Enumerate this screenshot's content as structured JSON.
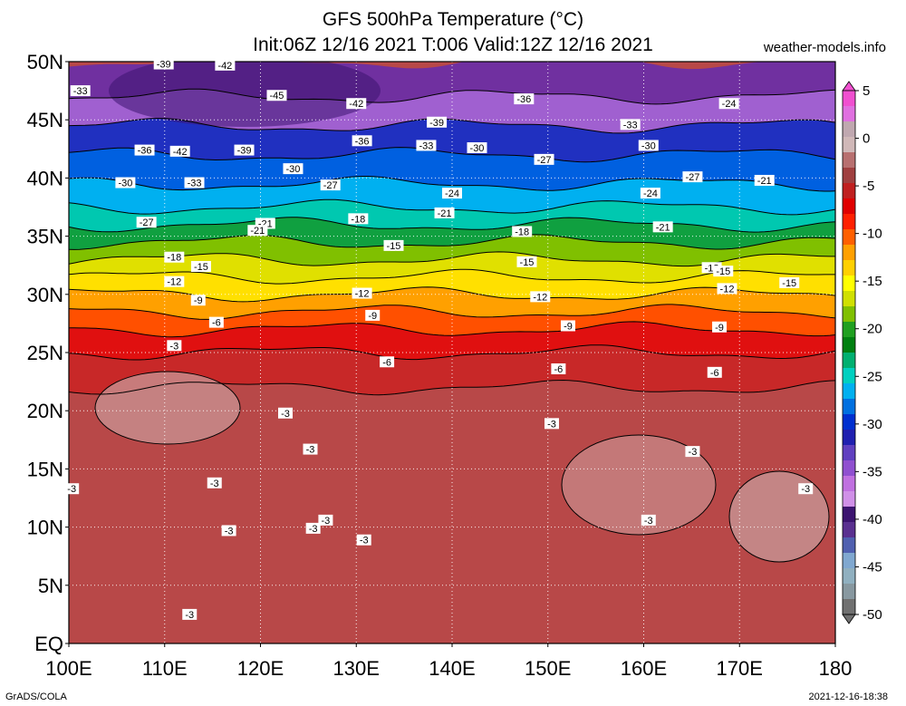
{
  "title_line1": "GFS 500hPa Temperature (°C)",
  "title_line2": "Init:06Z 12/16 2021 T:006 Valid:12Z 12/16 2021",
  "source": "weather-models.info",
  "footer_left": "GrADS/COLA",
  "footer_right": "2021-12-16-18:38",
  "lat_labels": [
    "50N",
    "45N",
    "40N",
    "35N",
    "30N",
    "25N",
    "20N",
    "15N",
    "10N",
    "5N",
    "EQ"
  ],
  "lon_labels": [
    "100E",
    "110E",
    "120E",
    "130E",
    "140E",
    "150E",
    "160E",
    "170E",
    "180"
  ],
  "colorbar": {
    "labels": [
      "5",
      "0",
      "-5",
      "-10",
      "-15",
      "-20",
      "-25",
      "-30",
      "-35",
      "-40",
      "-45",
      "-50"
    ],
    "colors": [
      "#f050d0",
      "#e070e0",
      "#c0a8b0",
      "#d0b8b8",
      "#b87070",
      "#a04040",
      "#c02020",
      "#e00000",
      "#ff2000",
      "#ff6000",
      "#ffa000",
      "#ffd000",
      "#ffff00",
      "#d0e000",
      "#80c000",
      "#20a020",
      "#008010",
      "#00b070",
      "#00d0c0",
      "#00b0f0",
      "#0070e0",
      "#0030d0",
      "#2020b0",
      "#6040c0",
      "#9050d0",
      "#c070e0",
      "#d090e8",
      "#3c1470",
      "#5a3090",
      "#5060b0",
      "#80a8d0",
      "#90b0c0",
      "#8898a0",
      "#707070"
    ]
  },
  "bands": [
    {
      "lat": 50,
      "color": "#7030a0"
    },
    {
      "lat": 47,
      "color": "#a060d0"
    },
    {
      "lat": 44.5,
      "color": "#2030c0"
    },
    {
      "lat": 42,
      "color": "#0060e0"
    },
    {
      "lat": 39.5,
      "color": "#00b0f0"
    },
    {
      "lat": 37.5,
      "color": "#00c8b0"
    },
    {
      "lat": 36,
      "color": "#10a040"
    },
    {
      "lat": 34.5,
      "color": "#80c000"
    },
    {
      "lat": 33,
      "color": "#e0e000"
    },
    {
      "lat": 31.5,
      "color": "#ffe000"
    },
    {
      "lat": 30,
      "color": "#ffa000"
    },
    {
      "lat": 28.5,
      "color": "#ff5000"
    },
    {
      "lat": 27,
      "color": "#e01010"
    },
    {
      "lat": 25,
      "color": "#c82828"
    },
    {
      "lat": 22,
      "color": "#b84848"
    },
    {
      "lat": 0,
      "color": "#b84848"
    }
  ],
  "contour_labels": [
    {
      "lon": 109.9,
      "lat": 49.8,
      "text": "-39"
    },
    {
      "lon": 116.3,
      "lat": 49.7,
      "text": "-42"
    },
    {
      "lon": 101.2,
      "lat": 47.5,
      "text": "-33"
    },
    {
      "lon": 121.7,
      "lat": 47.1,
      "text": "-45"
    },
    {
      "lon": 130.0,
      "lat": 46.4,
      "text": "-42"
    },
    {
      "lon": 147.5,
      "lat": 46.8,
      "text": "-36"
    },
    {
      "lon": 168.9,
      "lat": 46.4,
      "text": "-24"
    },
    {
      "lon": 138.4,
      "lat": 44.8,
      "text": "-39"
    },
    {
      "lon": 158.6,
      "lat": 44.6,
      "text": "-33"
    },
    {
      "lon": 130.6,
      "lat": 43.2,
      "text": "-36"
    },
    {
      "lon": 137.3,
      "lat": 42.8,
      "text": "-33"
    },
    {
      "lon": 142.6,
      "lat": 42.6,
      "text": "-30"
    },
    {
      "lon": 160.5,
      "lat": 42.8,
      "text": "-30"
    },
    {
      "lon": 107.9,
      "lat": 42.4,
      "text": "-36"
    },
    {
      "lon": 111.6,
      "lat": 42.3,
      "text": "-42"
    },
    {
      "lon": 118.3,
      "lat": 42.4,
      "text": "-39"
    },
    {
      "lon": 149.6,
      "lat": 41.6,
      "text": "-27"
    },
    {
      "lon": 123.4,
      "lat": 40.8,
      "text": "-30"
    },
    {
      "lon": 165.1,
      "lat": 40.1,
      "text": "-27"
    },
    {
      "lon": 172.6,
      "lat": 39.8,
      "text": "-21"
    },
    {
      "lon": 105.9,
      "lat": 39.6,
      "text": "-30"
    },
    {
      "lon": 113.1,
      "lat": 39.6,
      "text": "-33"
    },
    {
      "lon": 127.3,
      "lat": 39.4,
      "text": "-27"
    },
    {
      "lon": 140.0,
      "lat": 38.7,
      "text": "-24"
    },
    {
      "lon": 160.7,
      "lat": 38.7,
      "text": "-24"
    },
    {
      "lon": 139.2,
      "lat": 37.0,
      "text": "-21"
    },
    {
      "lon": 130.2,
      "lat": 36.5,
      "text": "-18"
    },
    {
      "lon": 120.5,
      "lat": 36.1,
      "text": "-21"
    },
    {
      "lon": 108.1,
      "lat": 36.2,
      "text": "-27"
    },
    {
      "lon": 119.7,
      "lat": 35.5,
      "text": "-21"
    },
    {
      "lon": 162.0,
      "lat": 35.8,
      "text": "-21"
    },
    {
      "lon": 147.3,
      "lat": 35.4,
      "text": "-18"
    },
    {
      "lon": 133.9,
      "lat": 34.2,
      "text": "-15"
    },
    {
      "lon": 111.0,
      "lat": 33.2,
      "text": "-18"
    },
    {
      "lon": 147.8,
      "lat": 32.8,
      "text": "-15"
    },
    {
      "lon": 113.8,
      "lat": 32.4,
      "text": "-15"
    },
    {
      "lon": 167.1,
      "lat": 32.3,
      "text": "-18"
    },
    {
      "lon": 168.3,
      "lat": 32.0,
      "text": "-15"
    },
    {
      "lon": 111.0,
      "lat": 31.1,
      "text": "-12"
    },
    {
      "lon": 175.2,
      "lat": 31.0,
      "text": "-15"
    },
    {
      "lon": 168.7,
      "lat": 30.5,
      "text": "-12"
    },
    {
      "lon": 130.6,
      "lat": 30.1,
      "text": "-12"
    },
    {
      "lon": 149.2,
      "lat": 29.8,
      "text": "-12"
    },
    {
      "lon": 113.5,
      "lat": 29.5,
      "text": "-9"
    },
    {
      "lon": 131.7,
      "lat": 28.2,
      "text": "-9"
    },
    {
      "lon": 115.4,
      "lat": 27.6,
      "text": "-6"
    },
    {
      "lon": 152.1,
      "lat": 27.3,
      "text": "-9"
    },
    {
      "lon": 167.9,
      "lat": 27.2,
      "text": "-9"
    },
    {
      "lon": 111.0,
      "lat": 25.6,
      "text": "-3"
    },
    {
      "lon": 133.2,
      "lat": 24.2,
      "text": "-6"
    },
    {
      "lon": 151.1,
      "lat": 23.6,
      "text": "-6"
    },
    {
      "lon": 167.4,
      "lat": 23.3,
      "text": "-6"
    },
    {
      "lon": 122.6,
      "lat": 19.8,
      "text": "-3"
    },
    {
      "lon": 150.4,
      "lat": 18.9,
      "text": "-3"
    },
    {
      "lon": 125.2,
      "lat": 16.7,
      "text": "-3"
    },
    {
      "lon": 165.1,
      "lat": 16.5,
      "text": "-3"
    },
    {
      "lon": 115.2,
      "lat": 13.8,
      "text": "-3"
    },
    {
      "lon": 100.3,
      "lat": 13.3,
      "text": "-3"
    },
    {
      "lon": 176.9,
      "lat": 13.3,
      "text": "-3"
    },
    {
      "lon": 126.8,
      "lat": 10.6,
      "text": "-3"
    },
    {
      "lon": 125.5,
      "lat": 9.9,
      "text": "-3"
    },
    {
      "lon": 116.7,
      "lat": 9.7,
      "text": "-3"
    },
    {
      "lon": 130.8,
      "lat": 8.9,
      "text": "-3"
    },
    {
      "lon": 160.5,
      "lat": 10.6,
      "text": "-3"
    },
    {
      "lon": 112.6,
      "lat": 2.5,
      "text": "-3"
    }
  ]
}
